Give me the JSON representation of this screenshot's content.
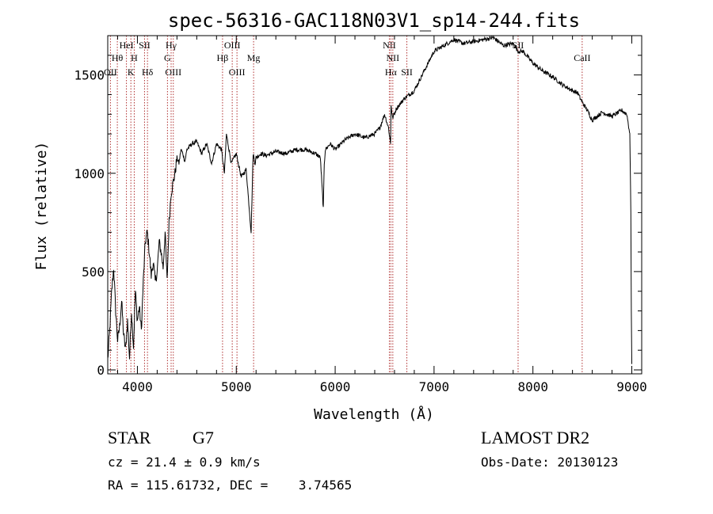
{
  "chart_data": {
    "type": "line",
    "title": "spec-56316-GAC118N03V1_sp14-244.fits",
    "xlabel": "Wavelength (Å)",
    "ylabel": "Flux (relative)",
    "xlim": [
      3700,
      9100
    ],
    "ylim": [
      -20,
      1700
    ],
    "xticks": [
      4000,
      5000,
      6000,
      7000,
      8000,
      9000
    ],
    "yticks": [
      0,
      500,
      1000,
      1500
    ],
    "grid": false,
    "line_color": "#000000",
    "marker_color": "#b03030",
    "series": [
      {
        "x": [
          3700,
          3720,
          3740,
          3760,
          3780,
          3800,
          3820,
          3840,
          3860,
          3880,
          3900,
          3920,
          3940,
          3960,
          3980,
          4000,
          4020,
          4040,
          4060,
          4080,
          4100,
          4120,
          4140,
          4160,
          4180,
          4200,
          4220,
          4240,
          4260,
          4280,
          4300,
          4320,
          4340,
          4360,
          4380,
          4400,
          4420,
          4440,
          4460,
          4480,
          4500,
          4550,
          4600,
          4650,
          4700,
          4750,
          4800,
          4850,
          4880,
          4900,
          4950,
          5000,
          5050,
          5100,
          5150,
          5170,
          5190,
          5200,
          5250,
          5300,
          5400,
          5500,
          5600,
          5700,
          5800,
          5850,
          5880,
          5890,
          5900,
          5950,
          6000,
          6100,
          6200,
          6300,
          6400,
          6450,
          6500,
          6540,
          6560,
          6565,
          6580,
          6620,
          6700,
          6800,
          6900,
          7000,
          7100,
          7200,
          7300,
          7400,
          7500,
          7600,
          7700,
          7800,
          7850,
          7900,
          8000,
          8100,
          8200,
          8300,
          8400,
          8450,
          8500,
          8550,
          8600,
          8700,
          8800,
          8900,
          8950,
          8980,
          8990,
          8995,
          9000
        ],
        "y": [
          50,
          200,
          400,
          520,
          300,
          150,
          220,
          350,
          180,
          100,
          250,
          60,
          300,
          120,
          400,
          250,
          320,
          200,
          450,
          650,
          700,
          600,
          480,
          550,
          450,
          500,
          650,
          600,
          520,
          700,
          450,
          750,
          900,
          950,
          1000,
          1080,
          1050,
          1120,
          1100,
          1060,
          1120,
          1150,
          1160,
          1100,
          1150,
          1050,
          1150,
          1120,
          1000,
          1200,
          1050,
          1100,
          980,
          1020,
          700,
          1100,
          1050,
          1080,
          1100,
          1090,
          1110,
          1100,
          1120,
          1120,
          1100,
          1080,
          820,
          1050,
          1120,
          1150,
          1120,
          1170,
          1200,
          1180,
          1200,
          1230,
          1300,
          1230,
          1150,
          1350,
          1280,
          1330,
          1380,
          1420,
          1520,
          1620,
          1650,
          1680,
          1660,
          1670,
          1680,
          1690,
          1650,
          1660,
          1620,
          1620,
          1560,
          1520,
          1490,
          1450,
          1420,
          1410,
          1360,
          1320,
          1270,
          1310,
          1290,
          1320,
          1300,
          1200,
          800,
          300,
          30
        ]
      }
    ],
    "line_markers": [
      {
        "x": 3797,
        "label": "Hθ",
        "row": 1
      },
      {
        "x": 3727,
        "label": "OII",
        "row": 2
      },
      {
        "x": 3889,
        "label": "HeI",
        "row": 0
      },
      {
        "x": 3934,
        "label": "K",
        "row": 2
      },
      {
        "x": 3968,
        "label": "H",
        "row": 1
      },
      {
        "x": 4072,
        "label": "SII",
        "row": 0
      },
      {
        "x": 4102,
        "label": "Hδ",
        "row": 2
      },
      {
        "x": 4304,
        "label": "G",
        "row": 1
      },
      {
        "x": 4341,
        "label": "Hγ",
        "row": 0
      },
      {
        "x": 4363,
        "label": "OIII",
        "row": 2
      },
      {
        "x": 4861,
        "label": "Hβ",
        "row": 1
      },
      {
        "x": 4959,
        "label": "OIII",
        "row": 0
      },
      {
        "x": 5007,
        "label": "OIII",
        "row": 2
      },
      {
        "x": 5175,
        "label": "Mg",
        "row": 1
      },
      {
        "x": 6548,
        "label": "NII",
        "row": 0
      },
      {
        "x": 6563,
        "label": "Hα",
        "row": 2
      },
      {
        "x": 6583,
        "label": "NII",
        "row": 1
      },
      {
        "x": 6725,
        "label": "SII",
        "row": 2
      },
      {
        "x": 7850,
        "label": "SII",
        "row": 0
      },
      {
        "x": 8498,
        "label": "CaII",
        "row": 1
      }
    ]
  },
  "info": {
    "class": "STAR",
    "subclass": "G7",
    "cz": "cz = 21.4 ± 0.9 km/s",
    "radec": "RA = 115.61732, DEC =    3.74565",
    "survey": "LAMOST DR2",
    "obs_date": "Obs-Date: 20130123"
  }
}
